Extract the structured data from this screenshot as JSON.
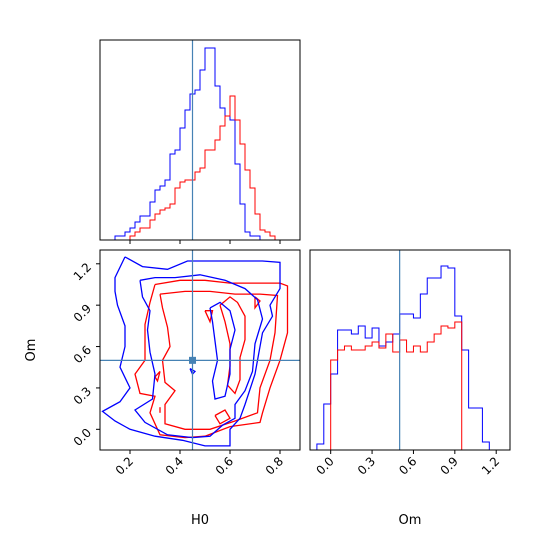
{
  "chart_data": {
    "type": "corner",
    "parameters": [
      "H0",
      "Om"
    ],
    "truths": {
      "H0": 0.45,
      "Om": 0.5
    },
    "truth_color": "#4682b4",
    "series": [
      {
        "color": "#0000ff"
      },
      {
        "color": "#ff0000"
      }
    ],
    "axes": {
      "H0": {
        "label": "H0",
        "range": [
          0.08,
          0.88
        ],
        "ticks": [
          "0.2",
          "0.4",
          "0.6",
          "0.8"
        ]
      },
      "Om": {
        "label": "Om",
        "range": [
          -0.15,
          1.3
        ],
        "ticks": [
          "0.0",
          "0.3",
          "0.6",
          "0.9",
          "1.2"
        ]
      }
    },
    "hist_H0": {
      "type": "histogram",
      "ylim": [
        0,
        1
      ],
      "bins": [
        0.14,
        0.16,
        0.18,
        0.2,
        0.22,
        0.24,
        0.26,
        0.28,
        0.3,
        0.32,
        0.34,
        0.36,
        0.38,
        0.4,
        0.42,
        0.44,
        0.46,
        0.48,
        0.5,
        0.52,
        0.54,
        0.56,
        0.58,
        0.6,
        0.62,
        0.64,
        0.66,
        0.68,
        0.7,
        0.72,
        0.74,
        0.76,
        0.78
      ],
      "blue": [
        0.02,
        0.02,
        0.04,
        0.06,
        0.09,
        0.12,
        0.12,
        0.19,
        0.25,
        0.27,
        0.3,
        0.43,
        0.45,
        0.56,
        0.65,
        0.73,
        0.75,
        0.85,
        0.96,
        0.96,
        0.77,
        0.66,
        0.62,
        0.6,
        0.38,
        0.18,
        0.04,
        0.02,
        0.02,
        0.0,
        0.0,
        0.0
      ],
      "red": [
        0.0,
        0.0,
        0.0,
        0.02,
        0.04,
        0.06,
        0.06,
        0.1,
        0.13,
        0.15,
        0.16,
        0.18,
        0.26,
        0.29,
        0.3,
        0.3,
        0.34,
        0.36,
        0.45,
        0.45,
        0.5,
        0.57,
        0.62,
        0.72,
        0.6,
        0.48,
        0.35,
        0.26,
        0.13,
        0.05,
        0.04,
        0.02
      ]
    },
    "hist_Om": {
      "type": "histogram",
      "ylim": [
        0,
        1
      ],
      "bins": [
        -0.1,
        -0.05,
        0.0,
        0.05,
        0.1,
        0.15,
        0.2,
        0.25,
        0.3,
        0.35,
        0.4,
        0.45,
        0.5,
        0.55,
        0.6,
        0.65,
        0.7,
        0.75,
        0.8,
        0.85,
        0.9,
        0.95,
        1.0,
        1.05,
        1.1,
        1.15
      ],
      "blue": [
        0.03,
        0.23,
        0.38,
        0.6,
        0.6,
        0.58,
        0.62,
        0.56,
        0.61,
        0.52,
        0.54,
        0.58,
        0.68,
        0.68,
        0.66,
        0.78,
        0.86,
        0.86,
        0.92,
        0.91,
        0.67,
        0.5,
        0.21,
        0.21,
        0.04
      ],
      "red": [
        0.0,
        0.0,
        0.45,
        0.5,
        0.52,
        0.5,
        0.5,
        0.52,
        0.54,
        0.51,
        0.58,
        0.49,
        0.55,
        0.49,
        0.52,
        0.49,
        0.54,
        0.58,
        0.62,
        0.61,
        0.64,
        0.0,
        0.0,
        0.0,
        0.0
      ]
    },
    "contour_2d": {
      "type": "contour",
      "x": "H0",
      "y": "Om",
      "blue": [
        [
          [
            0.18,
            1.25
          ],
          [
            0.25,
            1.18
          ],
          [
            0.35,
            1.16
          ],
          [
            0.43,
            1.22
          ],
          [
            0.52,
            1.22
          ],
          [
            0.63,
            1.22
          ],
          [
            0.73,
            1.22
          ],
          [
            0.8,
            1.21
          ],
          [
            0.8,
            1.02
          ],
          [
            0.76,
            0.9
          ],
          [
            0.77,
            0.82
          ],
          [
            0.73,
            0.7
          ],
          [
            0.7,
            0.4
          ],
          [
            0.66,
            0.18
          ],
          [
            0.64,
            0.08
          ],
          [
            0.6,
            0.0
          ],
          [
            0.6,
            -0.12
          ],
          [
            0.5,
            -0.12
          ],
          [
            0.41,
            -0.08
          ],
          [
            0.3,
            -0.05
          ],
          [
            0.2,
            0.0
          ],
          [
            0.14,
            0.06
          ],
          [
            0.09,
            0.13
          ],
          [
            0.16,
            0.2
          ],
          [
            0.2,
            0.3
          ],
          [
            0.16,
            0.45
          ],
          [
            0.18,
            0.6
          ],
          [
            0.18,
            0.75
          ],
          [
            0.15,
            0.9
          ],
          [
            0.14,
            1.0
          ],
          [
            0.14,
            1.1
          ],
          [
            0.18,
            1.25
          ]
        ],
        [
          [
            0.24,
            1.08
          ],
          [
            0.3,
            1.1
          ],
          [
            0.38,
            1.1
          ],
          [
            0.48,
            1.12
          ],
          [
            0.58,
            1.08
          ],
          [
            0.66,
            1.02
          ],
          [
            0.71,
            0.94
          ],
          [
            0.73,
            0.8
          ],
          [
            0.7,
            0.62
          ],
          [
            0.69,
            0.42
          ],
          [
            0.66,
            0.28
          ],
          [
            0.62,
            0.18
          ],
          [
            0.62,
            0.08
          ],
          [
            0.57,
            0.03
          ],
          [
            0.52,
            -0.05
          ],
          [
            0.45,
            -0.06
          ],
          [
            0.35,
            -0.04
          ],
          [
            0.26,
            0.05
          ],
          [
            0.22,
            0.14
          ],
          [
            0.29,
            0.22
          ],
          [
            0.3,
            0.4
          ],
          [
            0.28,
            0.56
          ],
          [
            0.27,
            0.72
          ],
          [
            0.28,
            0.86
          ],
          [
            0.25,
            0.96
          ],
          [
            0.24,
            1.08
          ]
        ],
        [
          [
            0.52,
            0.88
          ],
          [
            0.56,
            0.92
          ],
          [
            0.6,
            0.86
          ],
          [
            0.62,
            0.72
          ],
          [
            0.6,
            0.58
          ],
          [
            0.6,
            0.4
          ],
          [
            0.58,
            0.24
          ],
          [
            0.54,
            0.22
          ],
          [
            0.53,
            0.35
          ],
          [
            0.55,
            0.5
          ],
          [
            0.54,
            0.64
          ],
          [
            0.53,
            0.78
          ],
          [
            0.52,
            0.88
          ]
        ],
        [
          [
            0.44,
            0.44
          ],
          [
            0.46,
            0.42
          ],
          [
            0.45,
            0.4
          ],
          [
            0.44,
            0.44
          ]
        ]
      ],
      "red": [
        [
          [
            0.3,
            1.05
          ],
          [
            0.4,
            1.08
          ],
          [
            0.5,
            1.08
          ],
          [
            0.6,
            1.06
          ],
          [
            0.7,
            1.06
          ],
          [
            0.8,
            1.06
          ],
          [
            0.83,
            1.04
          ],
          [
            0.83,
            0.7
          ],
          [
            0.8,
            0.5
          ],
          [
            0.76,
            0.3
          ],
          [
            0.73,
            0.12
          ],
          [
            0.72,
            0.05
          ],
          [
            0.6,
            0.02
          ],
          [
            0.5,
            -0.05
          ],
          [
            0.42,
            -0.06
          ],
          [
            0.32,
            -0.04
          ],
          [
            0.28,
            0.12
          ],
          [
            0.3,
            0.24
          ],
          [
            0.24,
            0.26
          ],
          [
            0.22,
            0.4
          ],
          [
            0.26,
            0.5
          ],
          [
            0.26,
            0.62
          ],
          [
            0.26,
            0.76
          ],
          [
            0.28,
            0.92
          ],
          [
            0.3,
            1.05
          ]
        ],
        [
          [
            0.32,
            0.98
          ],
          [
            0.42,
            1.0
          ],
          [
            0.52,
            1.0
          ],
          [
            0.62,
            0.98
          ],
          [
            0.72,
            0.98
          ],
          [
            0.79,
            0.97
          ],
          [
            0.78,
            0.7
          ],
          [
            0.76,
            0.5
          ],
          [
            0.72,
            0.3
          ],
          [
            0.71,
            0.12
          ],
          [
            0.62,
            0.06
          ],
          [
            0.52,
            0.0
          ],
          [
            0.42,
            0.0
          ],
          [
            0.34,
            0.04
          ],
          [
            0.34,
            0.18
          ],
          [
            0.38,
            0.28
          ],
          [
            0.34,
            0.34
          ],
          [
            0.33,
            0.5
          ],
          [
            0.36,
            0.6
          ],
          [
            0.35,
            0.74
          ],
          [
            0.33,
            0.88
          ],
          [
            0.32,
            0.98
          ]
        ],
        [
          [
            0.56,
            0.9
          ],
          [
            0.6,
            0.96
          ],
          [
            0.63,
            0.92
          ],
          [
            0.66,
            0.82
          ],
          [
            0.66,
            0.65
          ],
          [
            0.64,
            0.52
          ],
          [
            0.64,
            0.36
          ],
          [
            0.62,
            0.26
          ],
          [
            0.59,
            0.32
          ],
          [
            0.6,
            0.46
          ],
          [
            0.6,
            0.62
          ],
          [
            0.58,
            0.78
          ],
          [
            0.56,
            0.9
          ]
        ],
        [
          [
            0.5,
            0.86
          ],
          [
            0.53,
            0.86
          ],
          [
            0.52,
            0.78
          ],
          [
            0.5,
            0.86
          ]
        ],
        [
          [
            0.7,
            0.96
          ],
          [
            0.72,
            0.93
          ],
          [
            0.7,
            0.88
          ],
          [
            0.7,
            0.96
          ]
        ],
        [
          [
            0.54,
            0.1
          ],
          [
            0.58,
            0.14
          ],
          [
            0.6,
            0.08
          ],
          [
            0.56,
            0.04
          ],
          [
            0.54,
            0.1
          ]
        ],
        [
          [
            0.3,
            0.38
          ],
          [
            0.32,
            0.42
          ],
          [
            0.31,
            0.35
          ],
          [
            0.3,
            0.38
          ]
        ],
        [
          [
            0.32,
            0.12
          ],
          [
            0.32,
            0.16
          ]
        ]
      ]
    }
  }
}
